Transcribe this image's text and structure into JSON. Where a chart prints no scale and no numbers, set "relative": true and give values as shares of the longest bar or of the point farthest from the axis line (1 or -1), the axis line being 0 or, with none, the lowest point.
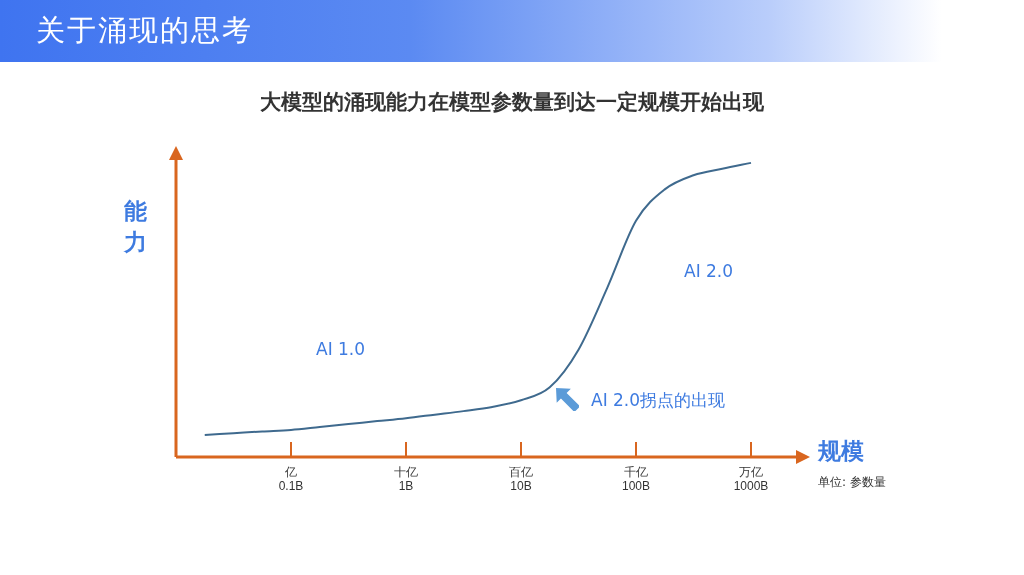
{
  "chart_data": {
    "type": "line",
    "title": "关于涌现的思考",
    "subtitle": "大模型的涌现能力在模型参数量到达一定规模开始出现",
    "xlabel": "规模",
    "ylabel": "能力",
    "relative": true,
    "categories": [
      null,
      null,
      null,
      null,
      "亿\n0.1B",
      null,
      null,
      null,
      "十亿\n1B",
      null,
      null,
      null,
      "百亿\n10B",
      null,
      null,
      null,
      "千亿\n100B",
      null,
      null,
      null,
      "万亿\n1000B"
    ],
    "series": [
      {
        "color": "#3f6a8e",
        "values": [
          null,
          0.075,
          0.081,
          0.087,
          0.092,
          0.102,
          0.112,
          0.122,
          0.132,
          0.144,
          0.156,
          0.17,
          0.193,
          0.237,
          0.365,
          0.575,
          0.803,
          0.91,
          0.958,
          0.98,
          1
        ]
      }
    ],
    "grid": false,
    "legend": false,
    "marker": "none",
    "line_style": "solid",
    "annotations": [
      "AI 1.0",
      "AI 2.0",
      "AI 2.0拐点的出现",
      "单位: 参数量"
    ]
  }
}
